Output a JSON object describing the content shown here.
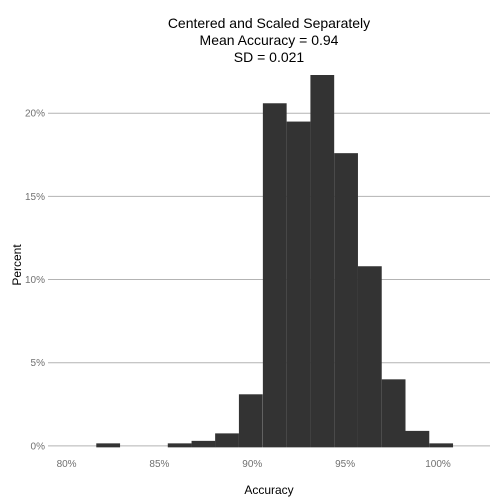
{
  "chart_data": {
    "type": "bar",
    "title_lines": [
      "Centered and Scaled Separately",
      "Mean Accuracy = 0.94",
      "SD = 0.021"
    ],
    "xlabel": "Accuracy",
    "ylabel": "Percent",
    "x_ticks": [
      {
        "value": 80,
        "label": "80%"
      },
      {
        "value": 85,
        "label": "85%"
      },
      {
        "value": 90,
        "label": "90%"
      },
      {
        "value": 95,
        "label": "95%"
      },
      {
        "value": 100,
        "label": "100%"
      }
    ],
    "y_ticks": [
      {
        "value": 0,
        "label": "0%"
      },
      {
        "value": 5,
        "label": "5%"
      },
      {
        "value": 10,
        "label": "10%"
      },
      {
        "value": 15,
        "label": "15%"
      },
      {
        "value": 20,
        "label": "20%"
      }
    ],
    "xlim": [
      79,
      102.8
    ],
    "ylim": [
      -0.55,
      22.3
    ],
    "grid": true,
    "bin_width": 1.28,
    "bins": [
      {
        "start": 81.6,
        "value": 0.15
      },
      {
        "start": 85.45,
        "value": 0.15
      },
      {
        "start": 86.73,
        "value": 0.3
      },
      {
        "start": 88.0,
        "value": 0.75
      },
      {
        "start": 89.28,
        "value": 3.1
      },
      {
        "start": 90.57,
        "value": 20.6
      },
      {
        "start": 91.85,
        "value": 19.5
      },
      {
        "start": 93.13,
        "value": 22.3
      },
      {
        "start": 94.41,
        "value": 17.6
      },
      {
        "start": 95.69,
        "value": 10.8
      },
      {
        "start": 96.97,
        "value": 4.0
      },
      {
        "start": 98.25,
        "value": 0.9
      },
      {
        "start": 99.53,
        "value": 0.15
      }
    ]
  }
}
